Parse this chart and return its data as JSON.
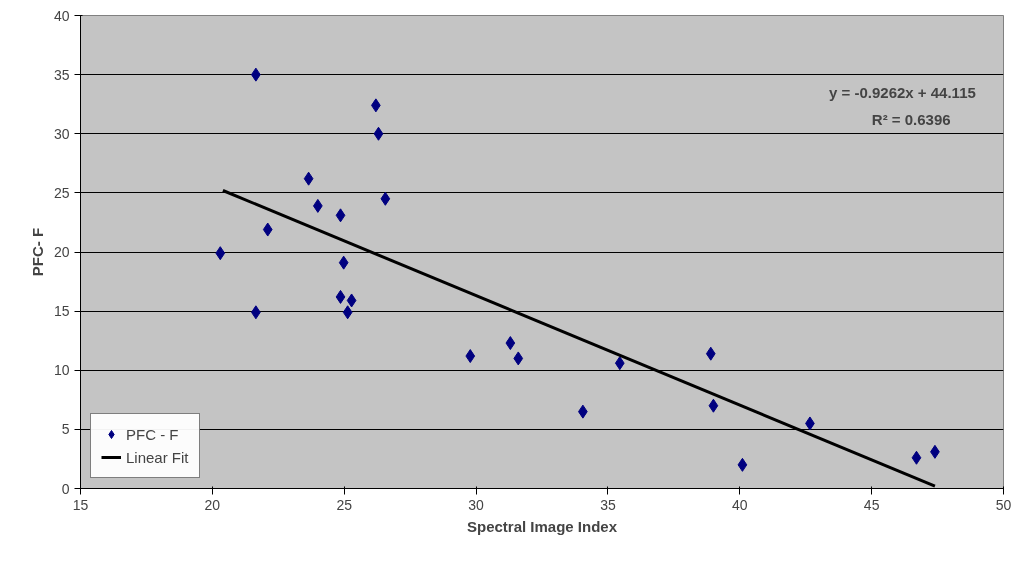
{
  "chart_data": {
    "type": "scatter",
    "xlabel": "Spectral Image Index",
    "ylabel": "PFC- F",
    "xlim": [
      15,
      50
    ],
    "ylim": [
      0,
      40
    ],
    "xticks": [
      15,
      20,
      25,
      30,
      35,
      40,
      45,
      50
    ],
    "yticks": [
      0,
      5,
      10,
      15,
      20,
      25,
      30,
      35,
      40
    ],
    "grid": "y",
    "legend": "bottom left",
    "annotations": [
      "y = -0.9262x + 44.115",
      "R² = 0.6396"
    ],
    "series": [
      {
        "name": "PFC - F",
        "marker": "diamond",
        "color": "#000080",
        "x": [
          21.65,
          26.2,
          26.3,
          23.65,
          24.0,
          26.56,
          24.86,
          22.1,
          20.3,
          24.98,
          24.86,
          25.28,
          25.13,
          21.65,
          29.78,
          31.3,
          31.6,
          35.45,
          34.05,
          38.9,
          39.0,
          40.1,
          42.66,
          46.7,
          47.4
        ],
        "values": [
          35,
          32.4,
          30.0,
          26.2,
          23.9,
          24.5,
          23.1,
          21.9,
          19.9,
          19.1,
          16.2,
          15.9,
          14.9,
          14.9,
          11.2,
          12.3,
          11.0,
          10.6,
          6.5,
          11.4,
          7.0,
          2.0,
          5.5,
          2.6,
          3.1
        ]
      },
      {
        "name": "Linear Fit",
        "type": "line",
        "color": "#000000",
        "x": [
          20.4,
          47.4
        ],
        "values": [
          25.2,
          0.2
        ]
      }
    ]
  }
}
